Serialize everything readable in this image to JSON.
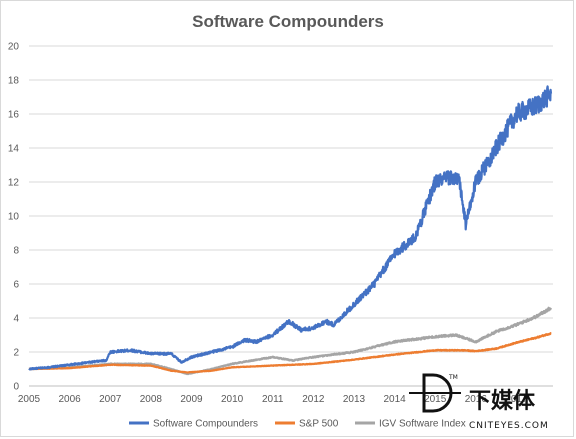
{
  "chart_data": {
    "type": "line",
    "title": "Software Compounders",
    "xlabel": "",
    "ylabel": "",
    "xlim": [
      2005,
      2017.9
    ],
    "ylim": [
      0,
      20
    ],
    "x_ticks": [
      "2005",
      "2006",
      "2007",
      "2008",
      "2009",
      "2010",
      "2011",
      "2012",
      "2013",
      "2014",
      "2015",
      "2016",
      "2017"
    ],
    "y_ticks": [
      "0",
      "2",
      "4",
      "6",
      "8",
      "10",
      "12",
      "14",
      "16",
      "18",
      "20"
    ],
    "grid": true,
    "legend_position": "bottom",
    "series": [
      {
        "name": "Software Compounders",
        "color": "#4472C4",
        "points": [
          [
            2005.0,
            1.0
          ],
          [
            2005.5,
            1.1
          ],
          [
            2006.0,
            1.25
          ],
          [
            2006.5,
            1.4
          ],
          [
            2006.9,
            1.5
          ],
          [
            2007.0,
            2.0
          ],
          [
            2007.5,
            2.1
          ],
          [
            2008.0,
            1.9
          ],
          [
            2008.5,
            1.9
          ],
          [
            2008.75,
            1.4
          ],
          [
            2009.0,
            1.7
          ],
          [
            2009.5,
            2.0
          ],
          [
            2010.0,
            2.3
          ],
          [
            2010.3,
            2.7
          ],
          [
            2010.6,
            2.6
          ],
          [
            2011.0,
            3.0
          ],
          [
            2011.4,
            3.8
          ],
          [
            2011.7,
            3.3
          ],
          [
            2012.0,
            3.4
          ],
          [
            2012.3,
            3.8
          ],
          [
            2012.5,
            3.6
          ],
          [
            2013.0,
            4.8
          ],
          [
            2013.5,
            6.0
          ],
          [
            2014.0,
            7.8
          ],
          [
            2014.5,
            8.7
          ],
          [
            2015.0,
            12.0
          ],
          [
            2015.4,
            12.3
          ],
          [
            2015.6,
            12.0
          ],
          [
            2015.75,
            9.5
          ],
          [
            2016.0,
            12.0
          ],
          [
            2016.5,
            14.0
          ],
          [
            2017.0,
            16.0
          ],
          [
            2017.5,
            16.5
          ],
          [
            2017.85,
            17.2
          ]
        ]
      },
      {
        "name": "S&P 500",
        "color": "#ED7D31",
        "points": [
          [
            2005.0,
            1.0
          ],
          [
            2006.0,
            1.05
          ],
          [
            2007.0,
            1.25
          ],
          [
            2008.0,
            1.2
          ],
          [
            2008.5,
            0.9
          ],
          [
            2008.9,
            0.8
          ],
          [
            2009.5,
            0.9
          ],
          [
            2010.0,
            1.1
          ],
          [
            2011.0,
            1.2
          ],
          [
            2012.0,
            1.3
          ],
          [
            2013.0,
            1.55
          ],
          [
            2014.0,
            1.85
          ],
          [
            2015.0,
            2.1
          ],
          [
            2015.7,
            2.1
          ],
          [
            2016.0,
            2.05
          ],
          [
            2016.5,
            2.2
          ],
          [
            2017.0,
            2.55
          ],
          [
            2017.5,
            2.85
          ],
          [
            2017.85,
            3.1
          ]
        ]
      },
      {
        "name": "IGV Software Index",
        "color": "#A5A5A5",
        "points": [
          [
            2005.0,
            1.0
          ],
          [
            2006.0,
            1.1
          ],
          [
            2007.0,
            1.3
          ],
          [
            2008.0,
            1.3
          ],
          [
            2008.5,
            1.0
          ],
          [
            2008.9,
            0.7
          ],
          [
            2009.5,
            1.0
          ],
          [
            2010.0,
            1.3
          ],
          [
            2011.0,
            1.7
          ],
          [
            2011.5,
            1.5
          ],
          [
            2012.0,
            1.7
          ],
          [
            2013.0,
            2.0
          ],
          [
            2014.0,
            2.6
          ],
          [
            2015.0,
            2.9
          ],
          [
            2015.5,
            3.0
          ],
          [
            2016.0,
            2.6
          ],
          [
            2016.5,
            3.2
          ],
          [
            2017.0,
            3.6
          ],
          [
            2017.5,
            4.1
          ],
          [
            2017.85,
            4.6
          ]
        ]
      }
    ]
  },
  "watermark": {
    "logo_text": "下媒体",
    "site_text": "CNITEYES.COM",
    "trademark": "TM"
  }
}
